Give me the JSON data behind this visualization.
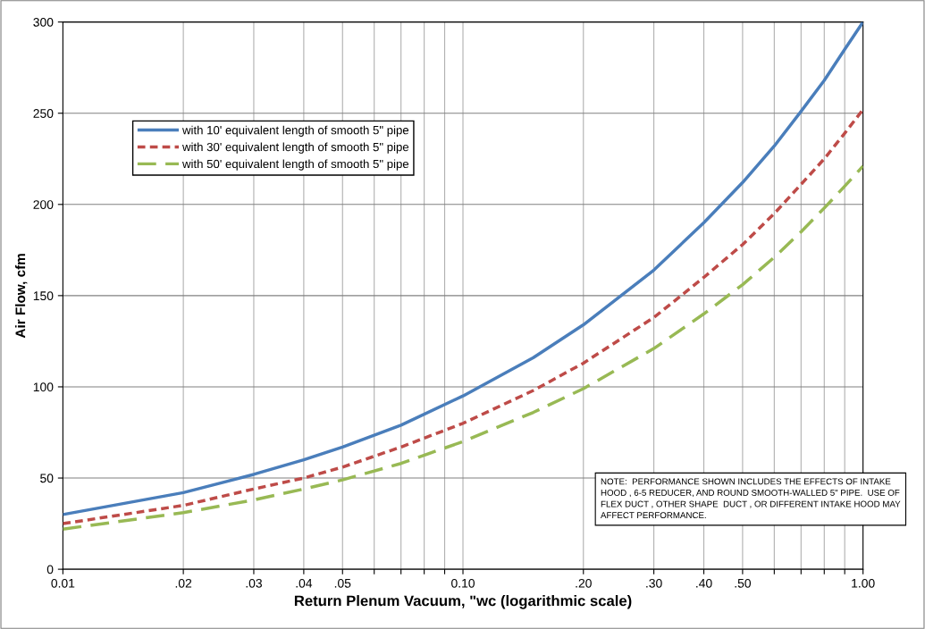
{
  "chart_data": {
    "type": "line",
    "xlabel": "Return Plenum Vacuum, \"wc (logarithmic scale)",
    "ylabel": "Air Flow, cfm",
    "log": "x",
    "x": [
      0.01,
      0.02,
      0.03,
      0.04,
      0.05,
      0.07,
      0.1,
      0.15,
      0.2,
      0.3,
      0.4,
      0.5,
      0.6,
      0.7,
      0.8,
      0.9,
      1.0
    ],
    "series": [
      {
        "name": "with 10' equivalent length of smooth 5\" pipe",
        "color": "#4a7ebb",
        "line_style": "solid",
        "values": [
          30,
          42,
          52,
          60,
          67,
          79,
          95,
          116,
          134,
          164,
          190,
          212,
          232,
          251,
          268,
          285,
          300
        ]
      },
      {
        "name": "with 30' equivalent length of smooth 5\" pipe",
        "color": "#be4b48",
        "line_style": "dotted",
        "values": [
          25,
          35,
          44,
          50,
          56,
          67,
          80,
          98,
          113,
          138,
          160,
          178,
          195,
          211,
          225,
          239,
          252
        ]
      },
      {
        "name": "with 50' equivalent length of smooth 5\" pipe",
        "color": "#98b954",
        "line_style": "dashed",
        "values": [
          22,
          31,
          38,
          44,
          49,
          58,
          70,
          86,
          99,
          121,
          140,
          156,
          171,
          185,
          198,
          210,
          221
        ]
      }
    ],
    "xlim": [
      0.01,
      1.0
    ],
    "ylim": [
      0,
      300
    ],
    "xticks": [
      {
        "value": 0.01,
        "label": "0.01"
      },
      {
        "value": 0.02,
        "label": ".02"
      },
      {
        "value": 0.03,
        "label": ".03"
      },
      {
        "value": 0.04,
        "label": ".04"
      },
      {
        "value": 0.05,
        "label": ".05"
      },
      {
        "value": 0.06,
        "label": null
      },
      {
        "value": 0.07,
        "label": null
      },
      {
        "value": 0.08,
        "label": null
      },
      {
        "value": 0.09,
        "label": null
      },
      {
        "value": 0.1,
        "label": "0.10"
      },
      {
        "value": 0.2,
        "label": ".20"
      },
      {
        "value": 0.3,
        "label": ".30"
      },
      {
        "value": 0.4,
        "label": ".40"
      },
      {
        "value": 0.5,
        "label": ".50"
      },
      {
        "value": 0.6,
        "label": null
      },
      {
        "value": 0.7,
        "label": null
      },
      {
        "value": 0.8,
        "label": null
      },
      {
        "value": 0.9,
        "label": null
      },
      {
        "value": 1.0,
        "label": "1.00"
      }
    ],
    "yticks": [
      0,
      50,
      100,
      150,
      200,
      250,
      300
    ],
    "grid": true,
    "legend": "top left",
    "annotations": [
      "NOTE:  PERFORMANCE SHOWN INCLUDES THE EFFECTS OF INTAKE HOOD , 6-5 REDUCER, AND ROUND SMOOTH-WALLED 5\" PIPE.  USE OF FLEX DUCT , OTHER SHAPE  DUCT , OR DIFFERENT INTAKE HOOD MAY AFFECT PERFORMANCE."
    ]
  }
}
